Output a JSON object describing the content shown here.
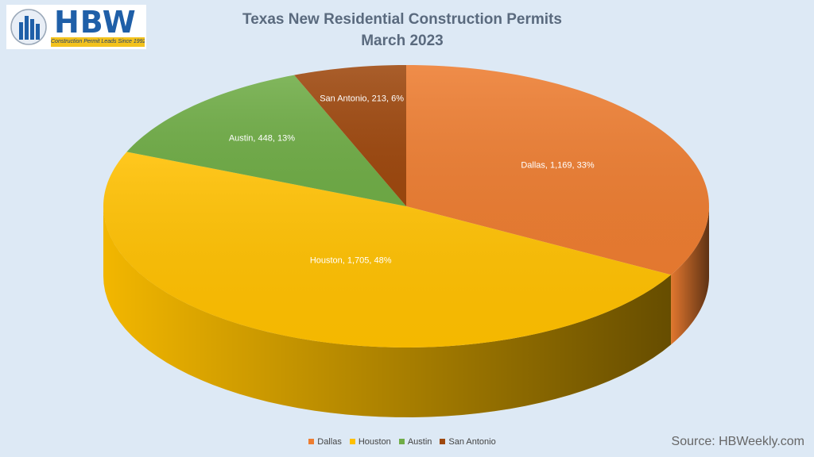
{
  "logo": {
    "text": "HBW",
    "tagline": "Construction Permit Leads Since 1992"
  },
  "source": "Source: HBWeekly.com",
  "chart_data": {
    "type": "pie",
    "title": "Texas New Residential Construction Permits",
    "subtitle": "March 2023",
    "categories": [
      "Dallas",
      "Houston",
      "Austin",
      "San Antonio"
    ],
    "values": [
      1169,
      1705,
      448,
      213
    ],
    "labels": [
      "Dallas, 1,169, 33%",
      "Houston, 1,705, 48%",
      "Austin, 448, 13%",
      "San Antonio, 213, 6%"
    ],
    "colors": [
      "#ed7d31",
      "#ffc000",
      "#70ad47",
      "#9e480e"
    ],
    "legend_position": "bottom",
    "style": "3d"
  }
}
